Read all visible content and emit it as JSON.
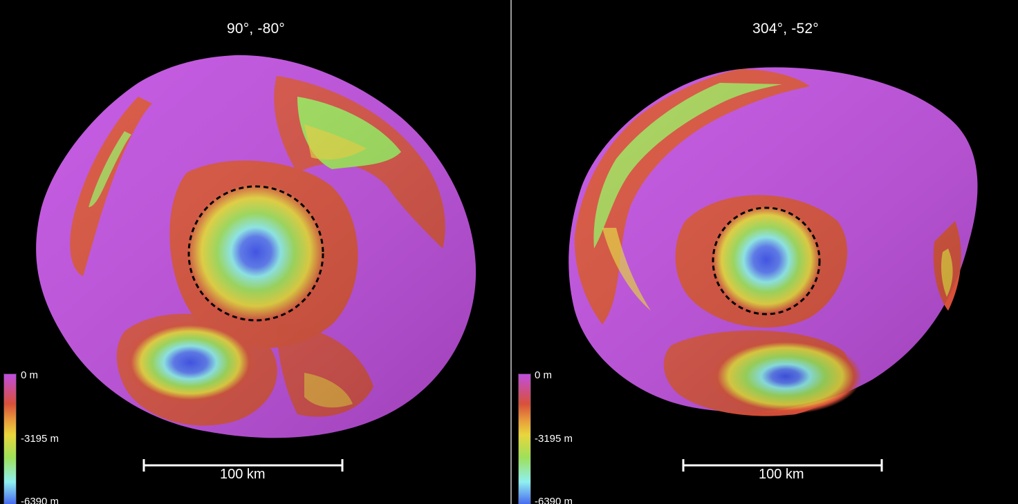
{
  "views": [
    {
      "title": "90°, -80°",
      "scale_label": "100 km",
      "colorbar": {
        "top": "0 m",
        "mid": "-3195 m",
        "bottom": "-6390 m"
      }
    },
    {
      "title": "304°, -52°",
      "scale_label": "100 km",
      "colorbar": {
        "top": "0 m",
        "mid": "-3195 m",
        "bottom": "-6390 m"
      }
    }
  ],
  "colors": {
    "background": "#000000",
    "surface": "#c04ee0",
    "red": "#d8503a",
    "yellow": "#e9d63c",
    "green": "#9ee05a",
    "cyan": "#8ff0f0",
    "blue": "#3a4ef0",
    "divider": "#9a9a9a"
  }
}
